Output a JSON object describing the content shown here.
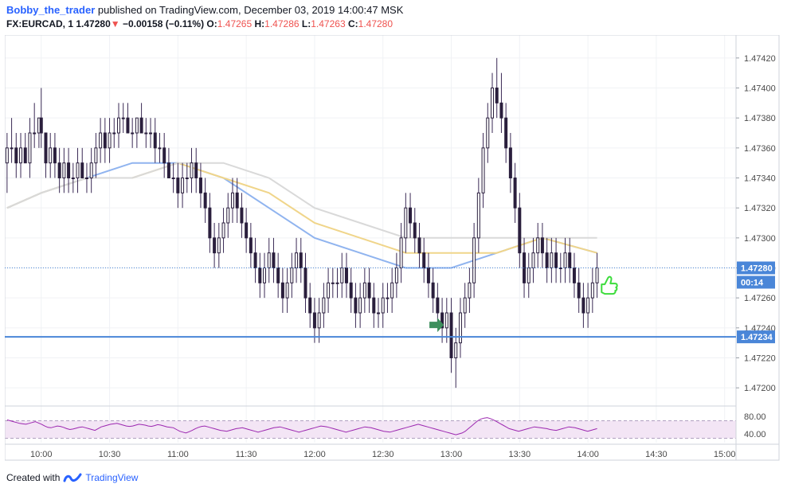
{
  "header": {
    "author": "Bobby_the_trader",
    "published_text": "published on TradingView.com, December 03, 2019 14:00:47 MSK",
    "symbol": "FX:EURCAD, 1",
    "last_price": "1.47280",
    "down_arrow": "▼",
    "change": "−0.00158 (−0.11%)",
    "open_label": "O:",
    "open_value": "1.47265",
    "high_label": "H:",
    "high_value": "1.47286",
    "low_label": "L:",
    "low_value": "1.47263",
    "close_label": "C:",
    "close_value": "1.47280"
  },
  "footer": {
    "created_with": "Created with",
    "brand": "TradingView"
  },
  "colors": {
    "candle_body": "#2a1f3d",
    "candle_wick": "#3a2a55",
    "ema_blue": "#90b4ef",
    "ema_yellow": "#f0d58a",
    "ema_gray": "#d9d9d9",
    "support_line": "#4a86d8",
    "price_line": "#4a86d8",
    "rsi_line": "#9c27b0",
    "rsi_band": "#f3e5f5",
    "arrow_green": "#3d8f5d",
    "thumb_green": "#3ddc3d",
    "axis_text": "#4a4a4a"
  },
  "chart_data": {
    "type": "candlestick",
    "timeframe": "1 minute",
    "x_ticks": [
      "10:00",
      "10:30",
      "11:00",
      "11:30",
      "12:00",
      "12:30",
      "13:00",
      "13:30",
      "14:00",
      "14:30",
      "15:00"
    ],
    "x_tick_minutes": [
      600,
      630,
      660,
      690,
      720,
      750,
      780,
      810,
      840,
      870,
      900
    ],
    "y_ticks": [
      "1.47420",
      "1.47400",
      "1.47380",
      "1.47360",
      "1.47340",
      "1.47320",
      "1.47300",
      "1.47280",
      "1.47260",
      "1.47240",
      "1.47220",
      "1.47200"
    ],
    "ylim": [
      1.4719,
      1.4743
    ],
    "xlim_minutes": [
      584,
      905
    ],
    "last_price_label": "1.47280",
    "countdown_label": "00:14",
    "support_label": "1.47234",
    "support_level": 1.47234,
    "rsi": {
      "ticks": [
        "80.00",
        "40.00"
      ],
      "upper": 70,
      "lower": 30,
      "ylim": [
        20,
        100
      ],
      "values": [
        72,
        70,
        68,
        66,
        64,
        63,
        62,
        64,
        66,
        68,
        65,
        62,
        58,
        55,
        54,
        56,
        58,
        57,
        55,
        52,
        50,
        51,
        53,
        55,
        56,
        54,
        52,
        50,
        48,
        52,
        56,
        58,
        60,
        62,
        63,
        64,
        62,
        60,
        58,
        57,
        58,
        60,
        62,
        61,
        60,
        58,
        57,
        59,
        61,
        60,
        58,
        56,
        55,
        54,
        50,
        46,
        44,
        42,
        45,
        48,
        52,
        55,
        57,
        58,
        56,
        54,
        52,
        50,
        48,
        47,
        46,
        48,
        50,
        52,
        53,
        54,
        52,
        50,
        48,
        46,
        44,
        46,
        48,
        50,
        52,
        54,
        55,
        56,
        54,
        52,
        50,
        48,
        46,
        44,
        46,
        48,
        50,
        52,
        54,
        56,
        58,
        57,
        56,
        54,
        52,
        50,
        48,
        46,
        44,
        46,
        48,
        50,
        52,
        54,
        56,
        55,
        54,
        52,
        50,
        48,
        46,
        45,
        44,
        46,
        48,
        50,
        52,
        54,
        56,
        58,
        60,
        62,
        60,
        58,
        56,
        54,
        52,
        50,
        48,
        46,
        44,
        42,
        40,
        38,
        40,
        42,
        46,
        52,
        58,
        64,
        70,
        74,
        76,
        77,
        75,
        72,
        68,
        64,
        60,
        56,
        52,
        50,
        48,
        46,
        48,
        50,
        52,
        54,
        56,
        55,
        54,
        53,
        52,
        50,
        49,
        48,
        50,
        52,
        54,
        56,
        55,
        54,
        52,
        50,
        48,
        46,
        48,
        50,
        52
      ]
    },
    "annotations": {
      "arrow_time_min": 776,
      "arrow_price": 1.47242,
      "thumb_time_min": 846,
      "thumb_price": 1.47268
    },
    "candles": [
      [
        585,
        1.4735,
        1.4737,
        1.4733,
        1.4736
      ],
      [
        587,
        1.4736,
        1.4738,
        1.4735,
        1.4736
      ],
      [
        589,
        1.4736,
        1.4737,
        1.4734,
        1.4735
      ],
      [
        591,
        1.4735,
        1.4737,
        1.4734,
        1.4736
      ],
      [
        593,
        1.4736,
        1.4737,
        1.4735,
        1.4735
      ],
      [
        595,
        1.4735,
        1.4738,
        1.4734,
        1.4737
      ],
      [
        597,
        1.4737,
        1.4739,
        1.4736,
        1.4737
      ],
      [
        599,
        1.4737,
        1.4738,
        1.4736,
        1.4738
      ],
      [
        600,
        1.4738,
        1.474,
        1.4736,
        1.4737
      ],
      [
        602,
        1.4737,
        1.4737,
        1.4734,
        1.4735
      ],
      [
        604,
        1.4735,
        1.4737,
        1.4734,
        1.4736
      ],
      [
        606,
        1.4736,
        1.4737,
        1.4734,
        1.4735
      ],
      [
        608,
        1.4735,
        1.4736,
        1.4733,
        1.4734
      ],
      [
        610,
        1.4734,
        1.4736,
        1.4733,
        1.4735
      ],
      [
        612,
        1.4735,
        1.4736,
        1.4733,
        1.4734
      ],
      [
        614,
        1.4734,
        1.4735,
        1.4733,
        1.4734
      ],
      [
        616,
        1.4734,
        1.4736,
        1.4733,
        1.4735
      ],
      [
        618,
        1.4735,
        1.4736,
        1.4734,
        1.4734
      ],
      [
        620,
        1.4734,
        1.4735,
        1.4733,
        1.4734
      ],
      [
        622,
        1.4734,
        1.4736,
        1.4733,
        1.4735
      ],
      [
        624,
        1.4735,
        1.4737,
        1.4734,
        1.4736
      ],
      [
        626,
        1.4736,
        1.4738,
        1.4735,
        1.4737
      ],
      [
        628,
        1.4737,
        1.4738,
        1.4735,
        1.4736
      ],
      [
        630,
        1.4736,
        1.4738,
        1.4735,
        1.4737
      ],
      [
        632,
        1.4737,
        1.4738,
        1.4736,
        1.4737
      ],
      [
        634,
        1.4737,
        1.4739,
        1.4736,
        1.4738
      ],
      [
        636,
        1.4738,
        1.4739,
        1.4737,
        1.4738
      ],
      [
        638,
        1.4738,
        1.4739,
        1.4737,
        1.4737
      ],
      [
        640,
        1.4737,
        1.4738,
        1.4736,
        1.4737
      ],
      [
        642,
        1.4737,
        1.4738,
        1.4736,
        1.4738
      ],
      [
        644,
        1.4738,
        1.4739,
        1.4737,
        1.4737
      ],
      [
        646,
        1.4737,
        1.4738,
        1.4736,
        1.4737
      ],
      [
        648,
        1.4737,
        1.4738,
        1.4736,
        1.4737
      ],
      [
        650,
        1.4737,
        1.4738,
        1.4735,
        1.4736
      ],
      [
        652,
        1.4736,
        1.4737,
        1.4735,
        1.4736
      ],
      [
        654,
        1.4736,
        1.4737,
        1.4734,
        1.4735
      ],
      [
        656,
        1.4735,
        1.4736,
        1.4734,
        1.4734
      ],
      [
        658,
        1.4734,
        1.4735,
        1.4733,
        1.4734
      ],
      [
        660,
        1.4734,
        1.4735,
        1.4732,
        1.4733
      ],
      [
        662,
        1.4733,
        1.4735,
        1.4732,
        1.4734
      ],
      [
        664,
        1.4734,
        1.4735,
        1.4733,
        1.4734
      ],
      [
        666,
        1.4734,
        1.4736,
        1.4733,
        1.4735
      ],
      [
        668,
        1.4735,
        1.4736,
        1.4733,
        1.4734
      ],
      [
        670,
        1.4734,
        1.4735,
        1.4732,
        1.4733
      ],
      [
        672,
        1.4733,
        1.4734,
        1.4731,
        1.4732
      ],
      [
        674,
        1.4732,
        1.4733,
        1.4729,
        1.473
      ],
      [
        676,
        1.473,
        1.4731,
        1.4728,
        1.4729
      ],
      [
        678,
        1.4729,
        1.4731,
        1.4728,
        1.473
      ],
      [
        680,
        1.473,
        1.4732,
        1.4729,
        1.4731
      ],
      [
        682,
        1.4731,
        1.4733,
        1.473,
        1.4732
      ],
      [
        684,
        1.4732,
        1.4734,
        1.4731,
        1.4733
      ],
      [
        686,
        1.4733,
        1.4734,
        1.4731,
        1.4732
      ],
      [
        688,
        1.4732,
        1.4733,
        1.473,
        1.4731
      ],
      [
        690,
        1.4731,
        1.4732,
        1.4729,
        1.473
      ],
      [
        692,
        1.473,
        1.4731,
        1.4728,
        1.4729
      ],
      [
        694,
        1.4729,
        1.473,
        1.4727,
        1.4728
      ],
      [
        696,
        1.4728,
        1.4729,
        1.4726,
        1.4727
      ],
      [
        698,
        1.4727,
        1.4729,
        1.4726,
        1.4728
      ],
      [
        700,
        1.4728,
        1.473,
        1.4727,
        1.4729
      ],
      [
        702,
        1.4729,
        1.473,
        1.4727,
        1.4728
      ],
      [
        704,
        1.4728,
        1.4729,
        1.4726,
        1.4727
      ],
      [
        706,
        1.4727,
        1.4728,
        1.4725,
        1.4726
      ],
      [
        708,
        1.4726,
        1.4728,
        1.4725,
        1.4727
      ],
      [
        710,
        1.4727,
        1.4729,
        1.4726,
        1.4728
      ],
      [
        712,
        1.4728,
        1.473,
        1.4727,
        1.4729
      ],
      [
        714,
        1.4729,
        1.473,
        1.4727,
        1.4728
      ],
      [
        716,
        1.4728,
        1.4729,
        1.4725,
        1.4726
      ],
      [
        718,
        1.4726,
        1.4727,
        1.4724,
        1.4725
      ],
      [
        720,
        1.4725,
        1.4726,
        1.4723,
        1.4724
      ],
      [
        722,
        1.4724,
        1.4726,
        1.4723,
        1.4725
      ],
      [
        724,
        1.4725,
        1.4727,
        1.4724,
        1.4726
      ],
      [
        726,
        1.4726,
        1.4728,
        1.4725,
        1.4727
      ],
      [
        728,
        1.4727,
        1.4728,
        1.4726,
        1.4727
      ],
      [
        730,
        1.4727,
        1.4728,
        1.4726,
        1.4727
      ],
      [
        732,
        1.4727,
        1.4729,
        1.4726,
        1.4728
      ],
      [
        734,
        1.4728,
        1.4729,
        1.4726,
        1.4727
      ],
      [
        736,
        1.4727,
        1.4728,
        1.4725,
        1.4726
      ],
      [
        738,
        1.4726,
        1.4727,
        1.4724,
        1.4725
      ],
      [
        740,
        1.4725,
        1.4727,
        1.4724,
        1.4726
      ],
      [
        742,
        1.4726,
        1.4728,
        1.4725,
        1.4727
      ],
      [
        744,
        1.4727,
        1.4728,
        1.4725,
        1.4726
      ],
      [
        746,
        1.4726,
        1.4727,
        1.4724,
        1.4725
      ],
      [
        748,
        1.4725,
        1.4726,
        1.4724,
        1.4725
      ],
      [
        750,
        1.4725,
        1.4727,
        1.4724,
        1.4726
      ],
      [
        752,
        1.4726,
        1.4727,
        1.4725,
        1.4726
      ],
      [
        754,
        1.4726,
        1.4728,
        1.4725,
        1.4727
      ],
      [
        756,
        1.4727,
        1.4729,
        1.4726,
        1.4728
      ],
      [
        758,
        1.4728,
        1.4731,
        1.4727,
        1.473
      ],
      [
        760,
        1.473,
        1.4733,
        1.4729,
        1.4732
      ],
      [
        762,
        1.4732,
        1.4733,
        1.473,
        1.4731
      ],
      [
        764,
        1.4731,
        1.4732,
        1.4729,
        1.473
      ],
      [
        766,
        1.473,
        1.4731,
        1.4728,
        1.4729
      ],
      [
        768,
        1.4729,
        1.473,
        1.4727,
        1.4728
      ],
      [
        770,
        1.4728,
        1.4729,
        1.4726,
        1.4727
      ],
      [
        772,
        1.4727,
        1.4728,
        1.4725,
        1.4726
      ],
      [
        774,
        1.4726,
        1.4727,
        1.4724,
        1.4725
      ],
      [
        776,
        1.4725,
        1.4726,
        1.4723,
        1.4724
      ],
      [
        778,
        1.4724,
        1.4726,
        1.4723,
        1.4725
      ],
      [
        780,
        1.4725,
        1.4726,
        1.4721,
        1.4722
      ],
      [
        782,
        1.4722,
        1.4724,
        1.472,
        1.4723
      ],
      [
        784,
        1.4723,
        1.4726,
        1.4722,
        1.4725
      ],
      [
        786,
        1.4725,
        1.4727,
        1.4724,
        1.4726
      ],
      [
        788,
        1.4726,
        1.4728,
        1.4725,
        1.4727
      ],
      [
        790,
        1.4727,
        1.4731,
        1.4726,
        1.473
      ],
      [
        792,
        1.473,
        1.4734,
        1.4729,
        1.4733
      ],
      [
        794,
        1.4733,
        1.4737,
        1.4732,
        1.4736
      ],
      [
        796,
        1.4736,
        1.4739,
        1.4735,
        1.4738
      ],
      [
        798,
        1.4738,
        1.4741,
        1.4737,
        1.474
      ],
      [
        800,
        1.474,
        1.4742,
        1.4738,
        1.4739
      ],
      [
        802,
        1.4739,
        1.4741,
        1.4737,
        1.4738
      ],
      [
        804,
        1.4738,
        1.4739,
        1.4735,
        1.4736
      ],
      [
        806,
        1.4736,
        1.4737,
        1.4733,
        1.4734
      ],
      [
        808,
        1.4734,
        1.4735,
        1.4731,
        1.4732
      ],
      [
        810,
        1.4732,
        1.4733,
        1.4728,
        1.4729
      ],
      [
        812,
        1.4729,
        1.473,
        1.4726,
        1.4727
      ],
      [
        814,
        1.4727,
        1.4729,
        1.4726,
        1.4728
      ],
      [
        816,
        1.4728,
        1.473,
        1.4727,
        1.4729
      ],
      [
        818,
        1.4729,
        1.4731,
        1.4728,
        1.473
      ],
      [
        820,
        1.473,
        1.4731,
        1.4728,
        1.4729
      ],
      [
        822,
        1.4729,
        1.473,
        1.4727,
        1.4728
      ],
      [
        824,
        1.4728,
        1.473,
        1.4727,
        1.4729
      ],
      [
        826,
        1.4729,
        1.473,
        1.4727,
        1.4728
      ],
      [
        828,
        1.4728,
        1.4729,
        1.4727,
        1.4728
      ],
      [
        830,
        1.4728,
        1.473,
        1.4727,
        1.4729
      ],
      [
        832,
        1.4729,
        1.473,
        1.4727,
        1.4728
      ],
      [
        834,
        1.4728,
        1.4729,
        1.4726,
        1.4727
      ],
      [
        836,
        1.4727,
        1.4728,
        1.4725,
        1.4726
      ],
      [
        838,
        1.4726,
        1.4727,
        1.4724,
        1.4725
      ],
      [
        840,
        1.4725,
        1.4727,
        1.4724,
        1.4726
      ],
      [
        842,
        1.4726,
        1.4728,
        1.4725,
        1.4727
      ],
      [
        844,
        1.4727,
        1.4729,
        1.4726,
        1.4728
      ]
    ],
    "ema_series": [
      {
        "color_key": "ema_blue",
        "points": [
          [
            585,
            1.4732
          ],
          [
            600,
            1.4733
          ],
          [
            620,
            1.4734
          ],
          [
            640,
            1.4735
          ],
          [
            660,
            1.4735
          ],
          [
            680,
            1.4734
          ],
          [
            700,
            1.4732
          ],
          [
            720,
            1.473
          ],
          [
            740,
            1.4729
          ],
          [
            760,
            1.4728
          ],
          [
            780,
            1.4728
          ],
          [
            800,
            1.4729
          ],
          [
            820,
            1.473
          ],
          [
            844,
            1.4729
          ]
        ]
      },
      {
        "color_key": "ema_yellow",
        "points": [
          [
            585,
            1.4732
          ],
          [
            600,
            1.4733
          ],
          [
            620,
            1.4734
          ],
          [
            640,
            1.4734
          ],
          [
            660,
            1.4735
          ],
          [
            680,
            1.4734
          ],
          [
            700,
            1.4733
          ],
          [
            720,
            1.4731
          ],
          [
            740,
            1.473
          ],
          [
            760,
            1.4729
          ],
          [
            780,
            1.4729
          ],
          [
            800,
            1.4729
          ],
          [
            820,
            1.473
          ],
          [
            844,
            1.4729
          ]
        ]
      },
      {
        "color_key": "ema_gray",
        "points": [
          [
            585,
            1.4732
          ],
          [
            600,
            1.4733
          ],
          [
            620,
            1.4734
          ],
          [
            640,
            1.4734
          ],
          [
            660,
            1.4735
          ],
          [
            680,
            1.4735
          ],
          [
            700,
            1.4734
          ],
          [
            720,
            1.4732
          ],
          [
            740,
            1.4731
          ],
          [
            760,
            1.473
          ],
          [
            780,
            1.473
          ],
          [
            800,
            1.473
          ],
          [
            820,
            1.473
          ],
          [
            844,
            1.473
          ]
        ]
      }
    ]
  }
}
